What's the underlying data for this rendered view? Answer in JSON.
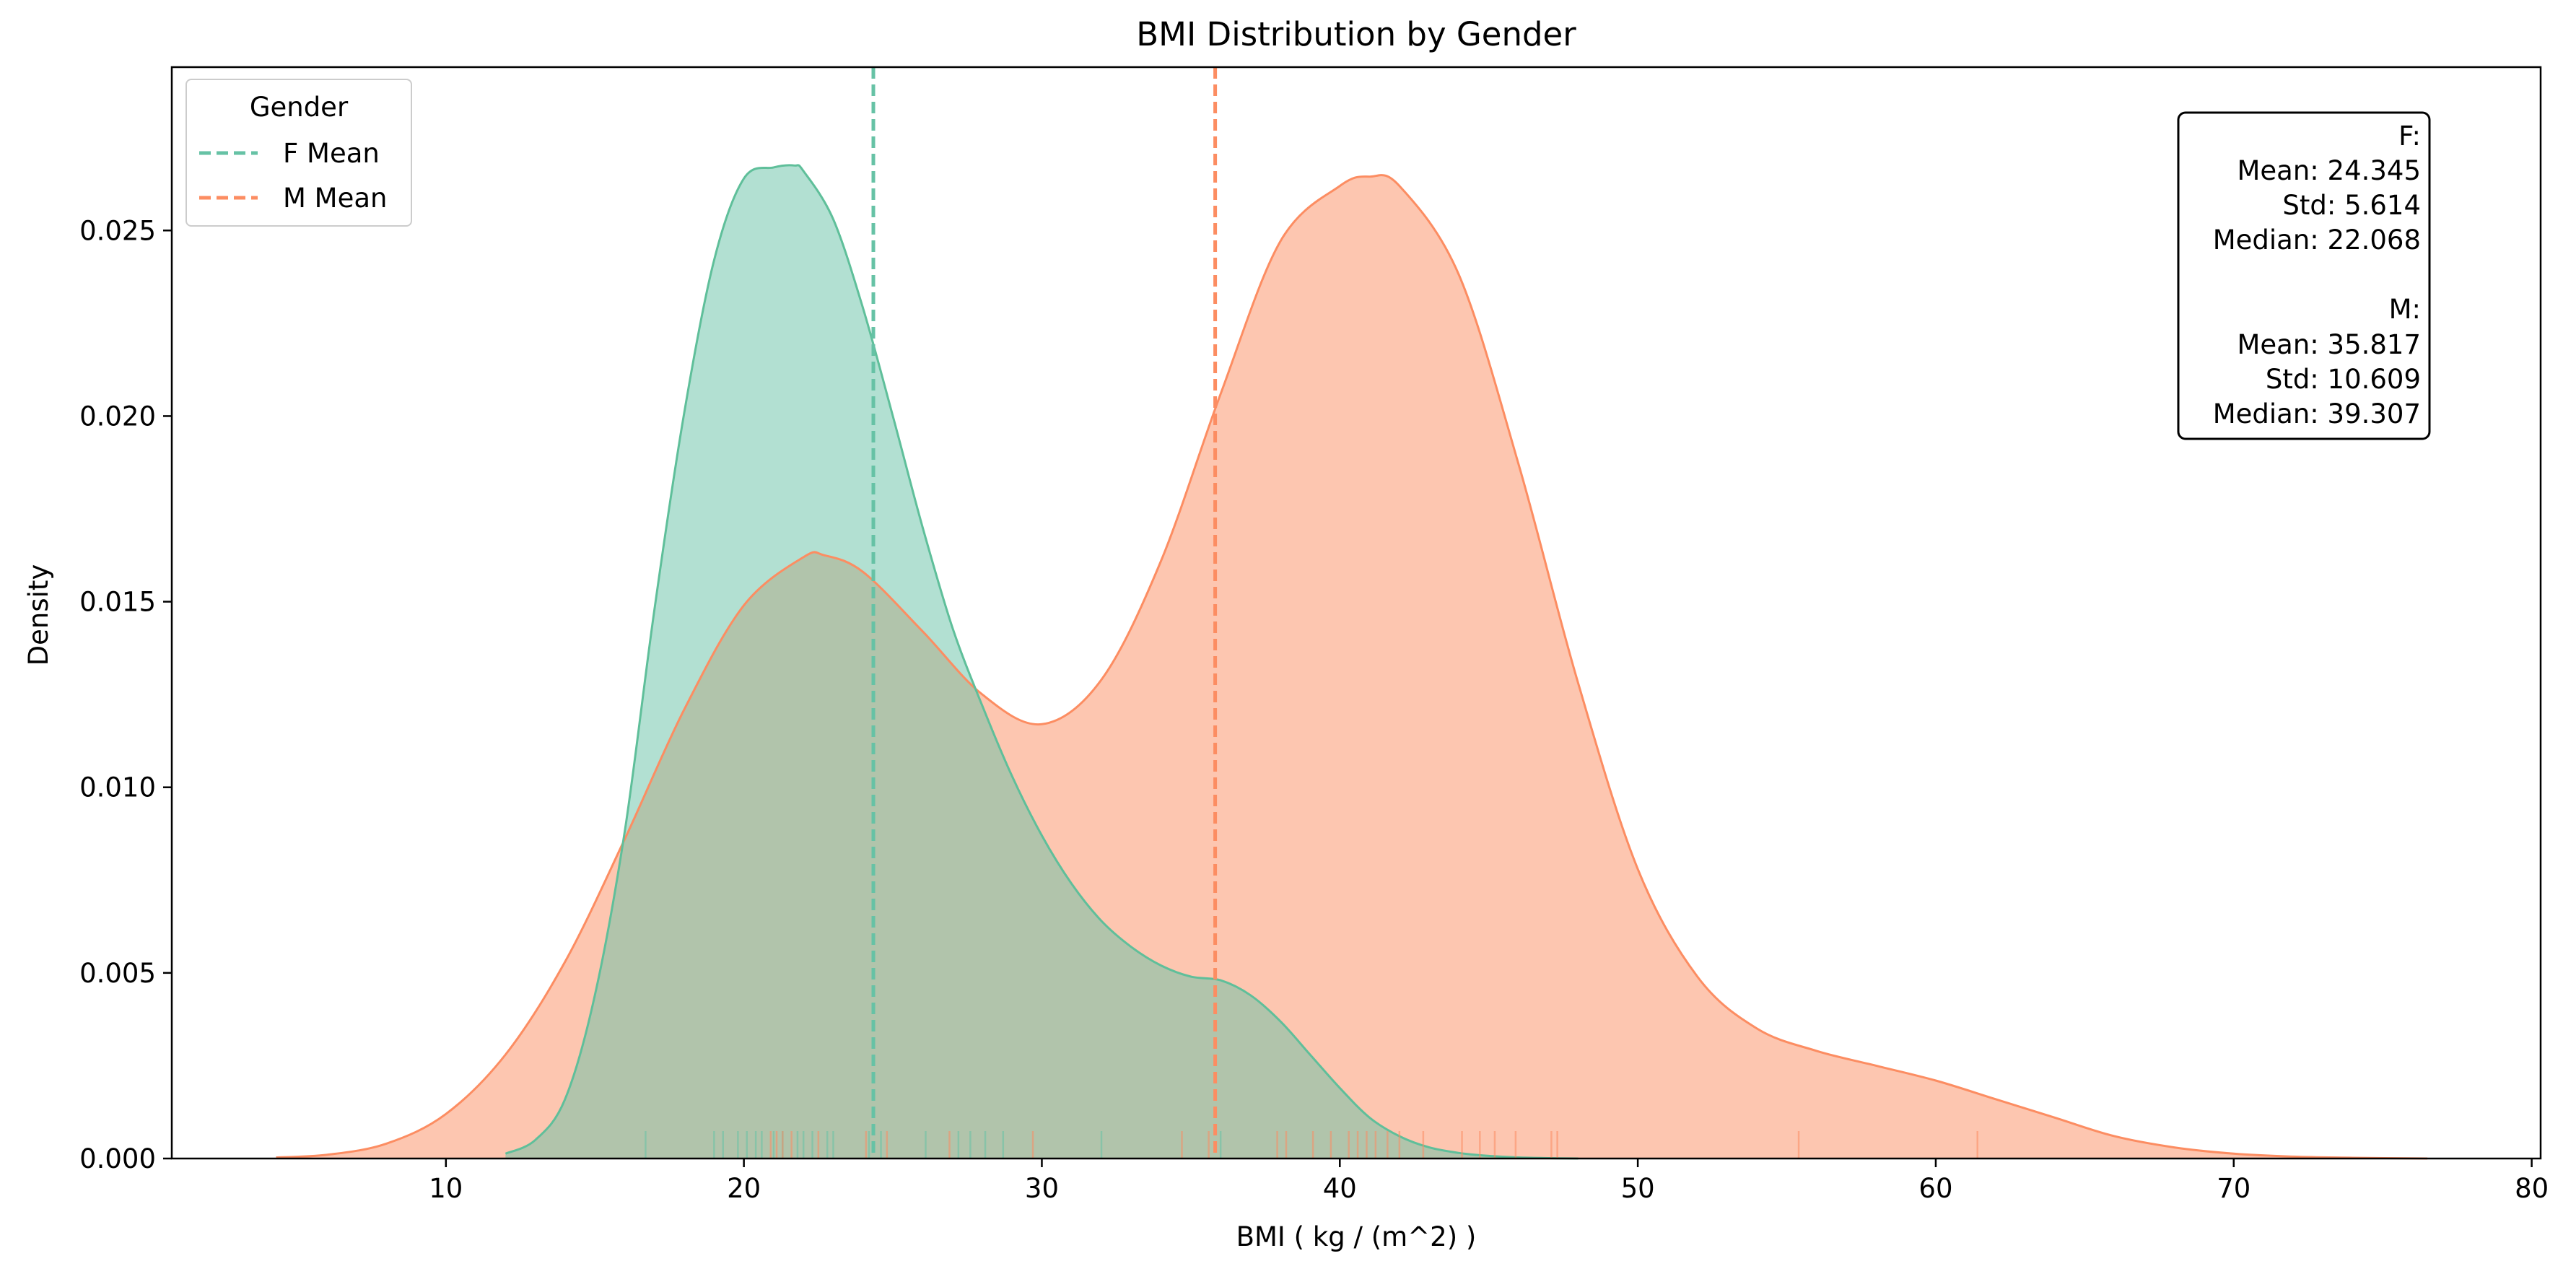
{
  "chart_data": {
    "type": "area",
    "title": "BMI Distribution by Gender",
    "xlabel": "BMI ( kg / (m^2) )",
    "ylabel": "Density",
    "xlim": [
      0.8,
      80.3
    ],
    "ylim": [
      0,
      0.0294
    ],
    "xticks": [
      10,
      20,
      30,
      40,
      50,
      60,
      70,
      80
    ],
    "yticks": [
      0,
      0.005,
      0.01,
      0.015,
      0.02,
      0.025
    ],
    "ytick_labels": [
      "0.000",
      "0.005",
      "0.010",
      "0.015",
      "0.020",
      "0.025"
    ],
    "grid": false,
    "legend": {
      "title": "Gender",
      "position": "top-left",
      "entries": [
        "F Mean",
        "M Mean"
      ]
    },
    "series": [
      {
        "name": "F",
        "fill": "#b2e2d2",
        "line": "#5fbf9a",
        "mean_line": "#66c2a5",
        "mean": 24.345,
        "x": [
          12,
          13,
          14,
          15,
          16,
          17,
          18,
          19,
          20,
          21,
          21.7,
          22,
          23,
          24,
          25,
          26,
          27,
          28,
          29,
          30,
          31,
          32,
          33,
          34,
          35,
          36,
          37,
          38,
          39,
          40,
          41,
          42,
          43,
          44,
          45,
          46,
          47,
          48
        ],
        "y": [
          0.00013,
          0.0005,
          0.0016,
          0.0044,
          0.0088,
          0.0148,
          0.0201,
          0.0242,
          0.0264,
          0.0267,
          0.02675,
          0.0266,
          0.0253,
          0.0229,
          0.02,
          0.017,
          0.0143,
          0.0122,
          0.0103,
          0.0087,
          0.0074,
          0.0064,
          0.0057,
          0.0052,
          0.0049,
          0.0048,
          0.0044,
          0.0037,
          0.0028,
          0.0019,
          0.0011,
          0.0006,
          0.0003,
          0.00015,
          7e-05,
          3e-05,
          1e-05,
          0
        ]
      },
      {
        "name": "M",
        "fill": "#fcc5af",
        "line": "#fc8d62",
        "mean_line": "#fc8d62",
        "mean": 35.817,
        "x": [
          4.3,
          6,
          8,
          10,
          12,
          14,
          16,
          18,
          20,
          22,
          22.7,
          24,
          26,
          28,
          30,
          32,
          34,
          36,
          38,
          40,
          41,
          42,
          44,
          46,
          48,
          50,
          52,
          54,
          56,
          58,
          60,
          62,
          64,
          66,
          68,
          70,
          72,
          74,
          76.5
        ],
        "y": [
          3e-05,
          0.0001,
          0.0004,
          0.0012,
          0.0028,
          0.0053,
          0.0086,
          0.0121,
          0.0149,
          0.0162,
          0.01625,
          0.0158,
          0.0142,
          0.0125,
          0.0117,
          0.0129,
          0.0161,
          0.0206,
          0.0247,
          0.0262,
          0.02645,
          0.0262,
          0.0238,
          0.0187,
          0.0128,
          0.0078,
          0.0049,
          0.0035,
          0.0029,
          0.0025,
          0.0021,
          0.0016,
          0.0011,
          0.0006,
          0.0003,
          0.00013,
          5e-05,
          2e-05,
          0
        ]
      }
    ],
    "rug": {
      "F": [
        16.7,
        19.0,
        19.3,
        19.8,
        20.1,
        20.4,
        20.6,
        21.0,
        21.3,
        21.8,
        22.0,
        22.3,
        22.8,
        23.0,
        24.2,
        24.6,
        26.1,
        27.2,
        27.6,
        28.1,
        28.7,
        32.0,
        36.0
      ],
      "M": [
        20.9,
        21.1,
        21.3,
        21.6,
        22.5,
        24.1,
        24.8,
        26.9,
        29.7,
        34.7,
        35.6,
        37.9,
        38.2,
        39.1,
        39.7,
        40.3,
        40.6,
        40.9,
        41.2,
        41.6,
        42.0,
        42.8,
        44.1,
        44.7,
        45.2,
        45.9,
        47.1,
        47.3,
        55.4,
        61.4
      ]
    },
    "stats_box": [
      "F:",
      "Mean: 24.345",
      "Std: 5.614",
      "Median: 22.068",
      "",
      "M:",
      "Mean: 35.817",
      "Std: 10.609",
      "Median: 39.307"
    ]
  }
}
